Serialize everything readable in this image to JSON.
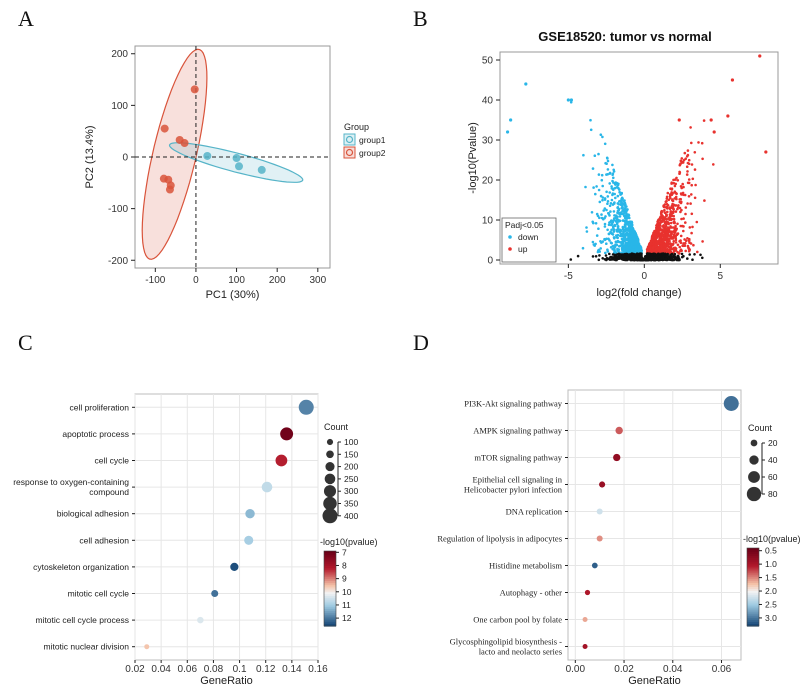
{
  "panels": {
    "a": "A",
    "b": "B",
    "c": "C",
    "d": "D"
  },
  "chart_data": [
    {
      "panel": "A",
      "type": "scatter",
      "title": "",
      "xlabel": "PC1 (30%)",
      "ylabel": "PC2 (13.4%)",
      "xlim": [
        -150,
        330
      ],
      "ylim": [
        -215,
        215
      ],
      "xticks": [
        -100,
        0,
        100,
        200,
        300
      ],
      "yticks": [
        -200,
        -100,
        0,
        100,
        200
      ],
      "reference_lines": {
        "x": 0,
        "y": 0,
        "style": "dashed"
      },
      "legend": {
        "title": "Group",
        "position": "right"
      },
      "series": [
        {
          "name": "group1",
          "color": "#56b4c8",
          "points": [
            [
              28,
              2
            ],
            [
              100,
              -2
            ],
            [
              106,
              -18
            ],
            [
              162,
              -25
            ]
          ]
        },
        {
          "name": "group2",
          "color": "#d9543b",
          "points": [
            [
              -3,
              131
            ],
            [
              -77,
              55
            ],
            [
              -40,
              33
            ],
            [
              -28,
              27
            ],
            [
              -79,
              -42
            ],
            [
              -68,
              -44
            ],
            [
              -62,
              -55
            ],
            [
              -64,
              -63
            ]
          ]
        }
      ]
    },
    {
      "panel": "B",
      "type": "scatter",
      "title": "GSE18520: tumor vs normal",
      "xlabel": "log2(fold change)",
      "ylabel": "-log10(Pvalue)",
      "xlim": [
        -9.5,
        8.8
      ],
      "ylim": [
        -1,
        52
      ],
      "xticks": [
        -5,
        0,
        5
      ],
      "yticks": [
        0,
        10,
        20,
        30,
        40,
        50
      ],
      "legend": {
        "title": "Padj<0.05",
        "position": "bottom-left"
      },
      "series": [
        {
          "name": "down",
          "color": "#29b6e8"
        },
        {
          "name": "up",
          "color": "#e8322e"
        }
      ],
      "highlighted_points": {
        "down": [
          [
            -7.8,
            44
          ],
          [
            -9,
            32
          ],
          [
            -8.8,
            35
          ],
          [
            -5,
            40
          ],
          [
            -4.8,
            40
          ]
        ],
        "up": [
          [
            7.6,
            51
          ],
          [
            8,
            27
          ],
          [
            5.8,
            45
          ],
          [
            5.5,
            36
          ],
          [
            4.6,
            32
          ],
          [
            4.4,
            35
          ],
          [
            2.3,
            35
          ]
        ]
      }
    },
    {
      "panel": "C",
      "type": "scatter",
      "title": "",
      "xlabel": "GeneRatio",
      "ylabel": "",
      "xlim": [
        0.02,
        0.16
      ],
      "xticks": [
        "0.02",
        "0.04",
        "0.06",
        "0.08",
        "0.1",
        "0.12",
        "0.14",
        "0.16"
      ],
      "categories": [
        "cell proliferation",
        "apoptotic process",
        "cell cycle",
        "response to oxygen-containing compound",
        "biological adhesion",
        "cell adhesion",
        "cytoskeleton organization",
        "mitotic cell cycle",
        "mitotic cell cycle process",
        "mitotic nuclear division"
      ],
      "category_lines": [
        [
          "cell proliferation"
        ],
        [
          "apoptotic process"
        ],
        [
          "cell cycle"
        ],
        [
          "response to oxygen-containing",
          "compound"
        ],
        [
          "biological adhesion"
        ],
        [
          "cell adhesion"
        ],
        [
          "cytoskeleton organization"
        ],
        [
          "mitotic cell cycle"
        ],
        [
          "mitotic cell cycle process"
        ],
        [
          "mitotic nuclear division"
        ]
      ],
      "gene_ratio": [
        0.151,
        0.136,
        0.132,
        0.121,
        0.108,
        0.107,
        0.096,
        0.081,
        0.07,
        0.029
      ],
      "count": [
        400,
        330,
        290,
        250,
        210,
        200,
        170,
        130,
        110,
        60
      ],
      "neg_log10_pvalue": [
        11.8,
        7,
        8.2,
        10.6,
        11.2,
        10.9,
        12.4,
        12,
        10.3,
        9.5
      ],
      "legend": {
        "size_title": "Count",
        "size_ticks": [
          100,
          150,
          200,
          250,
          300,
          350,
          400
        ],
        "color_title": "-log10(pvalue)",
        "color_ticks": [
          7,
          8,
          9,
          10,
          11,
          12
        ],
        "color_range": [
          6.9,
          12.6
        ]
      }
    },
    {
      "panel": "D",
      "type": "scatter",
      "title": "",
      "xlabel": "GeneRatio",
      "ylabel": "",
      "xlim": [
        -0.003,
        0.068
      ],
      "xticks": [
        "0.00",
        "0.02",
        "0.04",
        "0.06"
      ],
      "categories": [
        "PI3K-Akt signaling pathway",
        "AMPK signaling pathway",
        "mTOR signaling pathway",
        "Epithelial cell signaling in Helicobacter pylori infection",
        "DNA replication",
        "Regulation of lipolysis in adipocytes",
        "Histidine metabolism",
        "Autophagy - other",
        "One carbon pool by folate",
        "Glycosphingolipid biosynthesis - lacto and neolacto series"
      ],
      "category_lines": [
        [
          "PI3K-Akt signaling pathway"
        ],
        [
          "AMPK signaling pathway"
        ],
        [
          "mTOR signaling pathway"
        ],
        [
          "Epithelial cell signaling in",
          "Helicobacter pylori infection"
        ],
        [
          "DNA replication"
        ],
        [
          "Regulation of lipolysis in adipocytes"
        ],
        [
          "Histidine metabolism"
        ],
        [
          "Autophagy - other"
        ],
        [
          "One carbon pool by folate"
        ],
        [
          "Glycosphingolipid biosynthesis -",
          "lacto and neolacto series"
        ]
      ],
      "gene_ratio": [
        0.064,
        0.018,
        0.017,
        0.011,
        0.01,
        0.01,
        0.008,
        0.005,
        0.004,
        0.004
      ],
      "count": [
        85,
        25,
        24,
        15,
        14,
        14,
        12,
        8,
        6,
        6
      ],
      "neg_log10_pvalue": [
        3.0,
        1.3,
        0.75,
        0.8,
        2.2,
        1.5,
        3.1,
        1.0,
        1.6,
        0.9
      ],
      "legend": {
        "size_title": "Count",
        "size_ticks": [
          20,
          40,
          60,
          80
        ],
        "color_title": "-log10(pvalue)",
        "color_ticks": [
          "0.5",
          "1.0",
          "1.5",
          "2.0",
          "2.5",
          "3.0"
        ],
        "color_range": [
          0.4,
          3.3
        ]
      }
    }
  ]
}
